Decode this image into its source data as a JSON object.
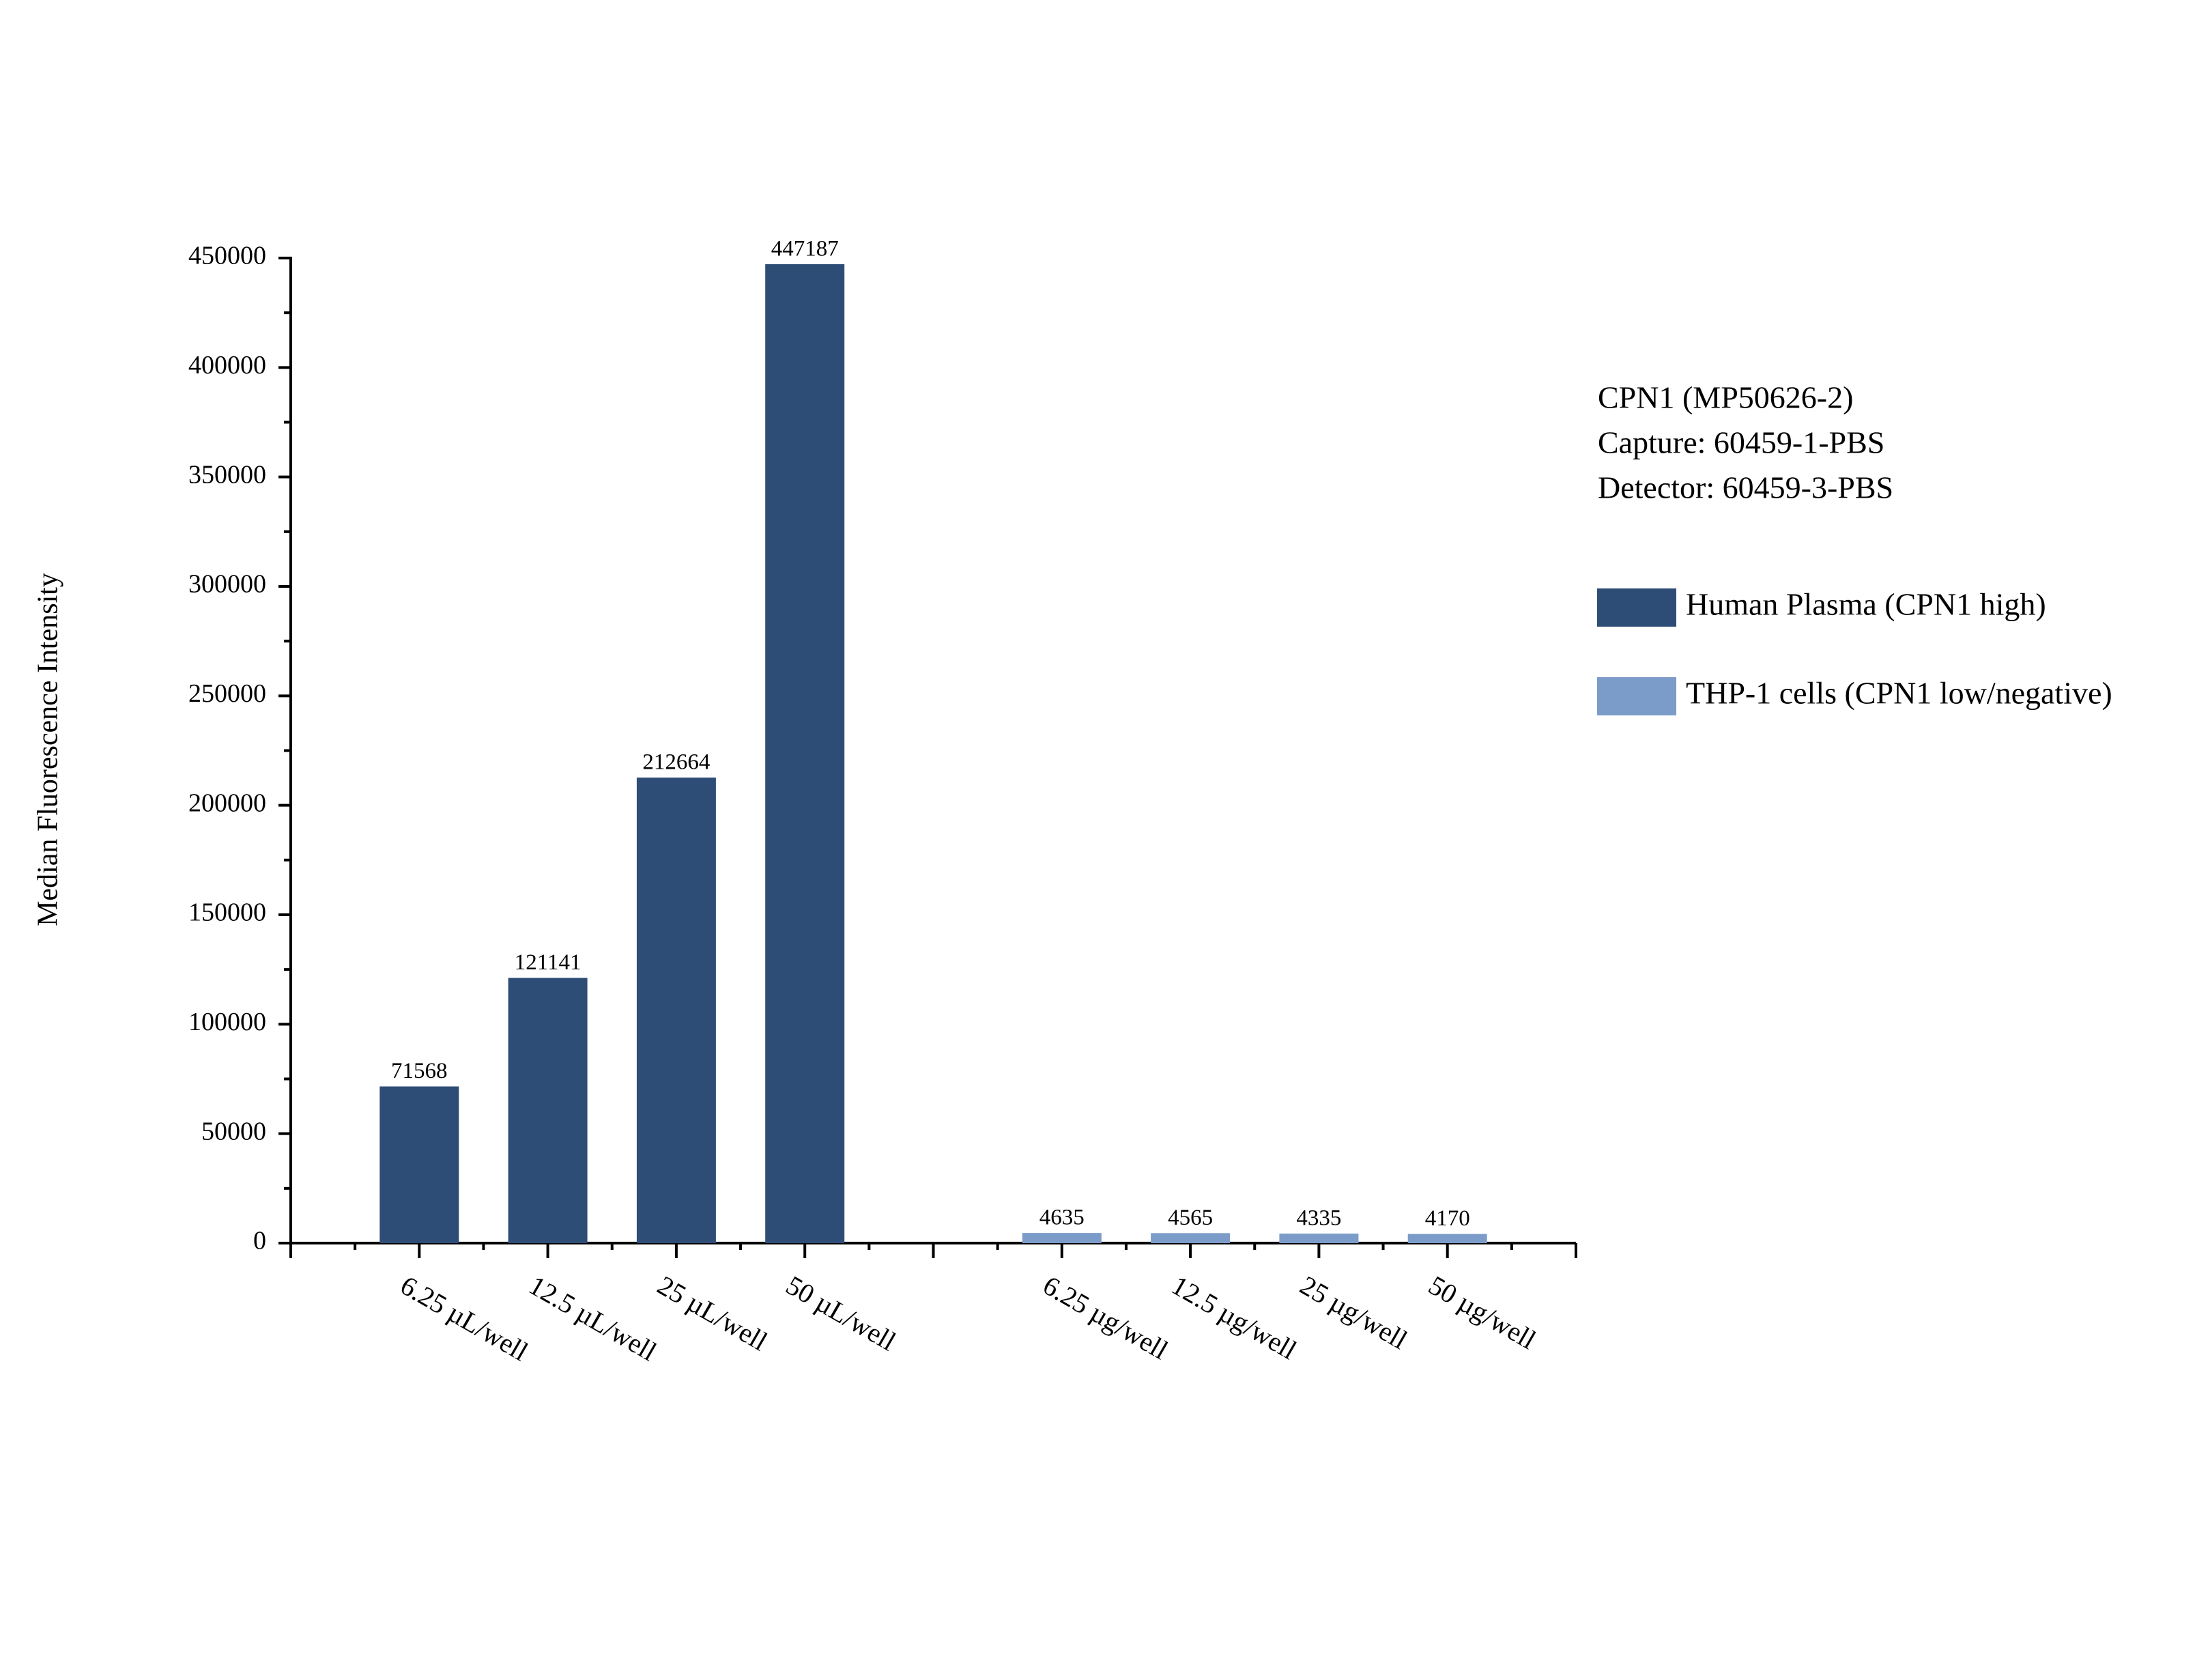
{
  "chart_data": {
    "type": "bar",
    "y_label": "Median Fluorescence Intensity",
    "annotations": [
      "CPN1 (MP50626-2)",
      "Capture: 60459-1-PBS",
      "Detector: 60459-3-PBS"
    ],
    "categories": [
      "6.25 µL/well",
      "12.5 µL/well",
      "25 µL/well",
      "50 µL/well",
      null,
      "6.25 µg/well",
      "12.5 µg/well",
      "25 µg/well",
      "50 µg/well"
    ],
    "series": [
      {
        "name": "Human Plasma (CPN1 high)",
        "color": "#2e4d76",
        "values": [
          71568,
          121141,
          212664,
          447187,
          null,
          null,
          null,
          null,
          null
        ]
      },
      {
        "name": "THP-1 cells (CPN1 low/negative)",
        "color": "#7b9cc8",
        "values": [
          null,
          null,
          null,
          null,
          null,
          4635,
          4565,
          4335,
          4170
        ]
      }
    ],
    "ylim": [
      0,
      450000
    ],
    "yticks": [
      0,
      50000,
      100000,
      150000,
      200000,
      250000,
      300000,
      350000,
      400000,
      450000
    ],
    "yminorticks": [
      25000,
      75000,
      125000,
      175000,
      225000,
      275000,
      325000,
      375000,
      425000
    ],
    "legend": "right",
    "grid": false
  }
}
